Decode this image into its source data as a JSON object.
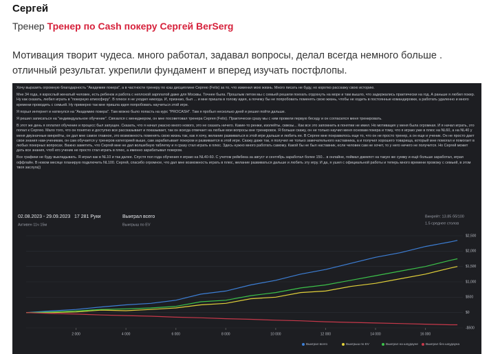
{
  "review": {
    "author": "Сергей",
    "role_label": "Тренер",
    "trainer_link": "Тренер по Cash покеру Сергей BerSerg",
    "text": "Мотивация творит чудеса. много работал, задавал вопросы, делал всегда немного больше . отличный результат. укрепили фундамент и вперед изучать постфлопы."
  },
  "chat_lines": [
    "Хочу выразить огромную благодарность \"Академии покера\", а в частности тренеру по кэш дисциплине Сергею (Felix) за то, что изменил мою жизнь. Много писать не буду, но коротко расскажу свою историю.",
    "Мне 34 года, я взрослый женатый человек, есть ребенок и работа с неплохой зарплатой даже для Москвы. Точнее была. Прошлым летом мы с семьей решили поехать отдохнуть на море и там вышло, что задержались практически на год. А раньше я любил покер. Ну как сказать, любил играть в \"покерную атмосферу\". В плюсе я не уходил никогда. И, признаю, был ... и мне пришла в голову идея, а почему бы не попробовать поменять свою жизнь, чтобы не ходить в постоянные командировки, а работать удаленно и много времени проводить с семьей. Ну примерно так мне пришла идея попробовать научиться этой игре.",
    "Я порыл интернет и наткнулся на \"Академию покера\". Там можно было попасть на курс \"PROCASH\". Там я пробыл несколько дней и решил пойти дальше.",
    "Я решил записаться на \"индивидуальное обучение\". Связался с менеджером, он мне посоветовал тренера Сергея (Felix). Практически сразу мы с ним провели первую беседу и он согласился меня тренировать.",
    "В этот же день я оплатил обучение и процесс был запущен. Сказать, что я начал ужасно много нового, это не сказать ничего. Какие-то ренжи, изолейты, сквезы... Как все это запомнить в понятии не имел. Но мотивация у меня была огромная. И я начал играть, это попал к Сергею. Мало того, что он понятно и доступно все рассказывает и показывает, так он всегда отвечает на любые мои вопросы вне тренировок. Я больше скажу, он не только научил меня основам покера и тому, что я играю уже в плюс на NL60, а на NL40 у меня двузначные винрейты, он дал мне самое главное, это возможность поменять свою жизнь так, как я хочу, желание развиваться в этой игре дальше и любить ее. В Сергее мне понравилось еще то, что он не просто тренер, а он еще и ученик. Он не просто дает свои знания нам-ученикам, он сам обучается у тренеров категорией выше, сам зарабатывает покером и развивается в этой игре. Скажу даже так, я получил не только замечательного наставника, а и получил хорошего товарища, который мне помогал и помогает в любых покерных вопросах. Важно заметить, что Сергей мне не дал волшебную таблетку и я сразу стал играть в плюс. Здесь нужно много работать самому. Какой бы не был наставник, если человек сам не хочет, то у него ничего не получится. Но Сергей может дать все знания, чтоб его ученик не просто стал играть в плюс, а именно зарабатывал покером.",
    "Все графики не буду выкладывать. Я играл как в NL10 и так далее. Спустя пол года обучения я играю на NL40-60. С учетом рейкбека за август и сентябрь заработал более 150... в онлайне, поймал джекпот на такую же сумму и ещё больше заработал, играя оффлайн. В новом месяце планирую подключить NL100. Сергей, спасибо огромное, что дал мне возможность играть в плюс, желание развиваться дальше и любить эту игру. И да, я ушел с официальной работы и теперь много времени провожу с семьей, в этом твоя заслуга))"
  ],
  "chart_data": {
    "type": "line",
    "header": [
      "02.08.2023 - 29.09.2023",
      "Активен 11ч 15м",
      "17 281 Руки",
      "Выиграл всего",
      "Выигрыш по EV",
      "Винрейт: 13.85 бб/100",
      "1.5 среднее столов"
    ],
    "x": [
      0,
      1000,
      2000,
      3000,
      4000,
      5000,
      6000,
      7000,
      8000,
      9000,
      10000,
      11000,
      12000,
      13000,
      14000,
      15000,
      16000,
      17000,
      17281
    ],
    "xlim": [
      0,
      17500
    ],
    "xticks": [
      {
        "value": 2000,
        "label": "2 000"
      },
      {
        "value": 4000,
        "label": "4 000"
      },
      {
        "value": 6000,
        "label": "6 000"
      },
      {
        "value": 8000,
        "label": "8 000"
      },
      {
        "value": 10000,
        "label": "10 000"
      },
      {
        "value": 12000,
        "label": "12 000"
      },
      {
        "value": 14000,
        "label": "14 000"
      },
      {
        "value": 16000,
        "label": "16 000"
      }
    ],
    "ylim": [
      -500,
      2500
    ],
    "yticks": [
      {
        "value": -500,
        "label": "-$500"
      },
      {
        "value": 0,
        "label": "$0"
      },
      {
        "value": 500,
        "label": "$500"
      },
      {
        "value": 1000,
        "label": "$1,000"
      },
      {
        "value": 1500,
        "label": "$1,500"
      },
      {
        "value": 2000,
        "label": "$2,000"
      },
      {
        "value": 2500,
        "label": "$2,500"
      }
    ],
    "grid": true,
    "legend": "bottom-right",
    "series": [
      {
        "name": "Выиграл всего",
        "color": "#3d7fd6",
        "values": [
          0,
          50,
          100,
          180,
          250,
          300,
          400,
          600,
          700,
          900,
          1050,
          1250,
          1400,
          1600,
          1800,
          1950,
          2150,
          2300,
          2350
        ]
      },
      {
        "name": "Выигрыш по EV",
        "color": "#e3d23a",
        "values": [
          0,
          0,
          20,
          80,
          60,
          100,
          150,
          250,
          300,
          450,
          500,
          650,
          700,
          850,
          950,
          1100,
          1250,
          1450,
          1500
        ]
      },
      {
        "name": "Выиграл на шоудауне",
        "color": "#3cc24a",
        "values": [
          0,
          20,
          50,
          100,
          120,
          150,
          200,
          350,
          400,
          550,
          650,
          800,
          900,
          1050,
          1200,
          1350,
          1500,
          1700,
          1750
        ]
      },
      {
        "name": "Выиграл без шоудауна",
        "color": "#c8384a",
        "values": [
          0,
          -30,
          -50,
          -80,
          -100,
          -120,
          -150,
          -170,
          -200,
          -220,
          -250,
          -270,
          -300,
          -320,
          -340,
          -360,
          -380,
          -400,
          -400
        ]
      }
    ]
  }
}
